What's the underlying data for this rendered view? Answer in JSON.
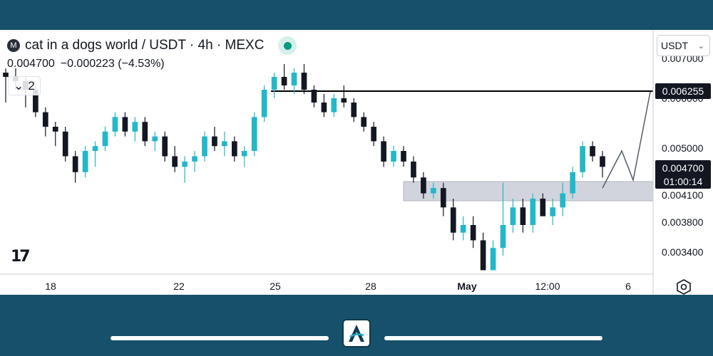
{
  "header": {
    "symbol_badge": "M",
    "title": "cat in a dogs world / USDT · 4h · MEXC",
    "price": "0.004700",
    "change": "−0.000223 (−4.53%)",
    "indicators_count": "2"
  },
  "currency_selector": {
    "label": "USDT"
  },
  "price_tags": {
    "resistance": "0.006255",
    "current": "0.004700",
    "countdown": "01:00:14"
  },
  "colors": {
    "up": "#22b7c9",
    "down": "#131722",
    "resistance_line": "#000000",
    "zone": "#d1d4dc",
    "frame": "#16506a",
    "live": "#089981"
  },
  "chart_data": {
    "type": "candlestick",
    "title": "cat in a dogs world / USDT · 4h · MEXC",
    "y_ticks": [
      "0.007000",
      "0.006000",
      "0.005000",
      "0.004100",
      "0.003800",
      "0.003400"
    ],
    "x_ticks": [
      "18",
      "22",
      "25",
      "28",
      "May",
      "12:00",
      "6"
    ],
    "resistance_level": 0.006255,
    "support_zone": [
      0.004097,
      0.004385
    ],
    "projected_path": [
      0.0043,
      0.005,
      0.00445,
      0.00625
    ],
    "candles": [
      [
        0.0067,
        0.0068,
        0.006,
        0.0066
      ],
      [
        0.0066,
        0.0068,
        0.0063,
        0.0065
      ],
      [
        0.0065,
        0.0066,
        0.0059,
        0.0063
      ],
      [
        0.0063,
        0.0064,
        0.0057,
        0.0058
      ],
      [
        0.0058,
        0.0059,
        0.0053,
        0.0055
      ],
      [
        0.0055,
        0.0056,
        0.0051,
        0.0054
      ],
      [
        0.0054,
        0.0055,
        0.0048,
        0.0049
      ],
      [
        0.0049,
        0.005,
        0.0044,
        0.0046
      ],
      [
        0.0046,
        0.0051,
        0.0045,
        0.005
      ],
      [
        0.005,
        0.0052,
        0.0047,
        0.0051
      ],
      [
        0.0051,
        0.0055,
        0.005,
        0.0054
      ],
      [
        0.0054,
        0.0058,
        0.0053,
        0.0057
      ],
      [
        0.0057,
        0.0058,
        0.0053,
        0.0054
      ],
      [
        0.0054,
        0.0057,
        0.0052,
        0.0056
      ],
      [
        0.0056,
        0.0057,
        0.0051,
        0.0052
      ],
      [
        0.0052,
        0.0054,
        0.005,
        0.0053
      ],
      [
        0.0053,
        0.0054,
        0.0048,
        0.0049
      ],
      [
        0.0049,
        0.0051,
        0.0046,
        0.0047
      ],
      [
        0.0047,
        0.0049,
        0.0044,
        0.0048
      ],
      [
        0.0048,
        0.005,
        0.0046,
        0.0049
      ],
      [
        0.0049,
        0.0054,
        0.0048,
        0.0053
      ],
      [
        0.0053,
        0.0055,
        0.005,
        0.0051
      ],
      [
        0.0051,
        0.0054,
        0.0049,
        0.0052
      ],
      [
        0.0052,
        0.0053,
        0.0048,
        0.0049
      ],
      [
        0.0049,
        0.0051,
        0.0047,
        0.005
      ],
      [
        0.005,
        0.0058,
        0.0049,
        0.0057
      ],
      [
        0.0057,
        0.0064,
        0.0056,
        0.0063
      ],
      [
        0.0063,
        0.0067,
        0.0061,
        0.0066
      ],
      [
        0.0066,
        0.0069,
        0.0063,
        0.0064
      ],
      [
        0.0064,
        0.0068,
        0.0062,
        0.0067
      ],
      [
        0.0067,
        0.0069,
        0.0062,
        0.0063
      ],
      [
        0.0063,
        0.0064,
        0.0059,
        0.006
      ],
      [
        0.006,
        0.0062,
        0.0057,
        0.0058
      ],
      [
        0.0058,
        0.0062,
        0.0057,
        0.0061
      ],
      [
        0.0061,
        0.0064,
        0.0059,
        0.006
      ],
      [
        0.006,
        0.0061,
        0.0056,
        0.0057
      ],
      [
        0.0057,
        0.0058,
        0.0054,
        0.0055
      ],
      [
        0.0055,
        0.0056,
        0.0051,
        0.0052
      ],
      [
        0.0052,
        0.0053,
        0.0047,
        0.0048
      ],
      [
        0.0048,
        0.0051,
        0.0047,
        0.005
      ],
      [
        0.005,
        0.0051,
        0.0047,
        0.0048
      ],
      [
        0.0048,
        0.0049,
        0.0044,
        0.0045
      ],
      [
        0.0045,
        0.0046,
        0.0041,
        0.0042
      ],
      [
        0.0042,
        0.0044,
        0.0041,
        0.0043
      ],
      [
        0.0043,
        0.0044,
        0.0039,
        0.004
      ],
      [
        0.004,
        0.0041,
        0.0036,
        0.0037
      ],
      [
        0.0037,
        0.0039,
        0.0036,
        0.0038
      ],
      [
        0.0038,
        0.0039,
        0.0035,
        0.0036
      ],
      [
        0.0036,
        0.0037,
        0.0032,
        0.0032
      ],
      [
        0.0032,
        0.0036,
        0.0032,
        0.0035
      ],
      [
        0.0035,
        0.0044,
        0.0034,
        0.0038
      ],
      [
        0.0038,
        0.0041,
        0.0037,
        0.004
      ],
      [
        0.004,
        0.0041,
        0.0037,
        0.0038
      ],
      [
        0.0038,
        0.0042,
        0.0037,
        0.0041
      ],
      [
        0.0041,
        0.0042,
        0.0039,
        0.0039
      ],
      [
        0.0039,
        0.0041,
        0.0038,
        0.004
      ],
      [
        0.004,
        0.0044,
        0.0039,
        0.0042
      ],
      [
        0.0042,
        0.0047,
        0.0041,
        0.0046
      ],
      [
        0.0046,
        0.0052,
        0.0045,
        0.0051
      ],
      [
        0.0051,
        0.0052,
        0.0048,
        0.0049
      ],
      [
        0.0049,
        0.005,
        0.0045,
        0.0047
      ]
    ]
  }
}
